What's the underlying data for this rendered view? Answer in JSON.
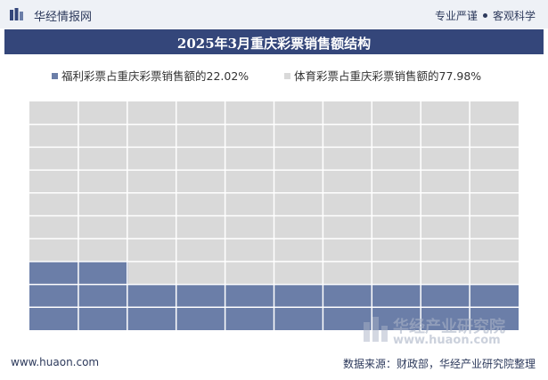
{
  "header": {
    "brand": "华经情报网",
    "tagline_left": "专业严谨",
    "tagline_right": "客观科学"
  },
  "watermark": {
    "cn": "华经产业研究院",
    "url": "www.huaon.com"
  },
  "footer": {
    "site": "www.huaon.com",
    "source": "数据来源：财政部，华经产业研究院整理"
  },
  "colors": {
    "welfare": "#6b7ea8",
    "sports": "#d9d9d9",
    "title_bg": "#34467a",
    "grid": "#ffffff"
  },
  "chart_data": {
    "type": "waffle",
    "title": "2025年3月重庆彩票销售额结构",
    "grid": {
      "rows": 10,
      "cols": 10,
      "fill_from": "bottom-left"
    },
    "series": [
      {
        "name": "福利彩票占重庆彩票销售额的22.02%",
        "value": 22.02,
        "unit": "%"
      },
      {
        "name": "体育彩票占重庆彩票销售额的77.98%",
        "value": 77.98,
        "unit": "%"
      }
    ]
  }
}
